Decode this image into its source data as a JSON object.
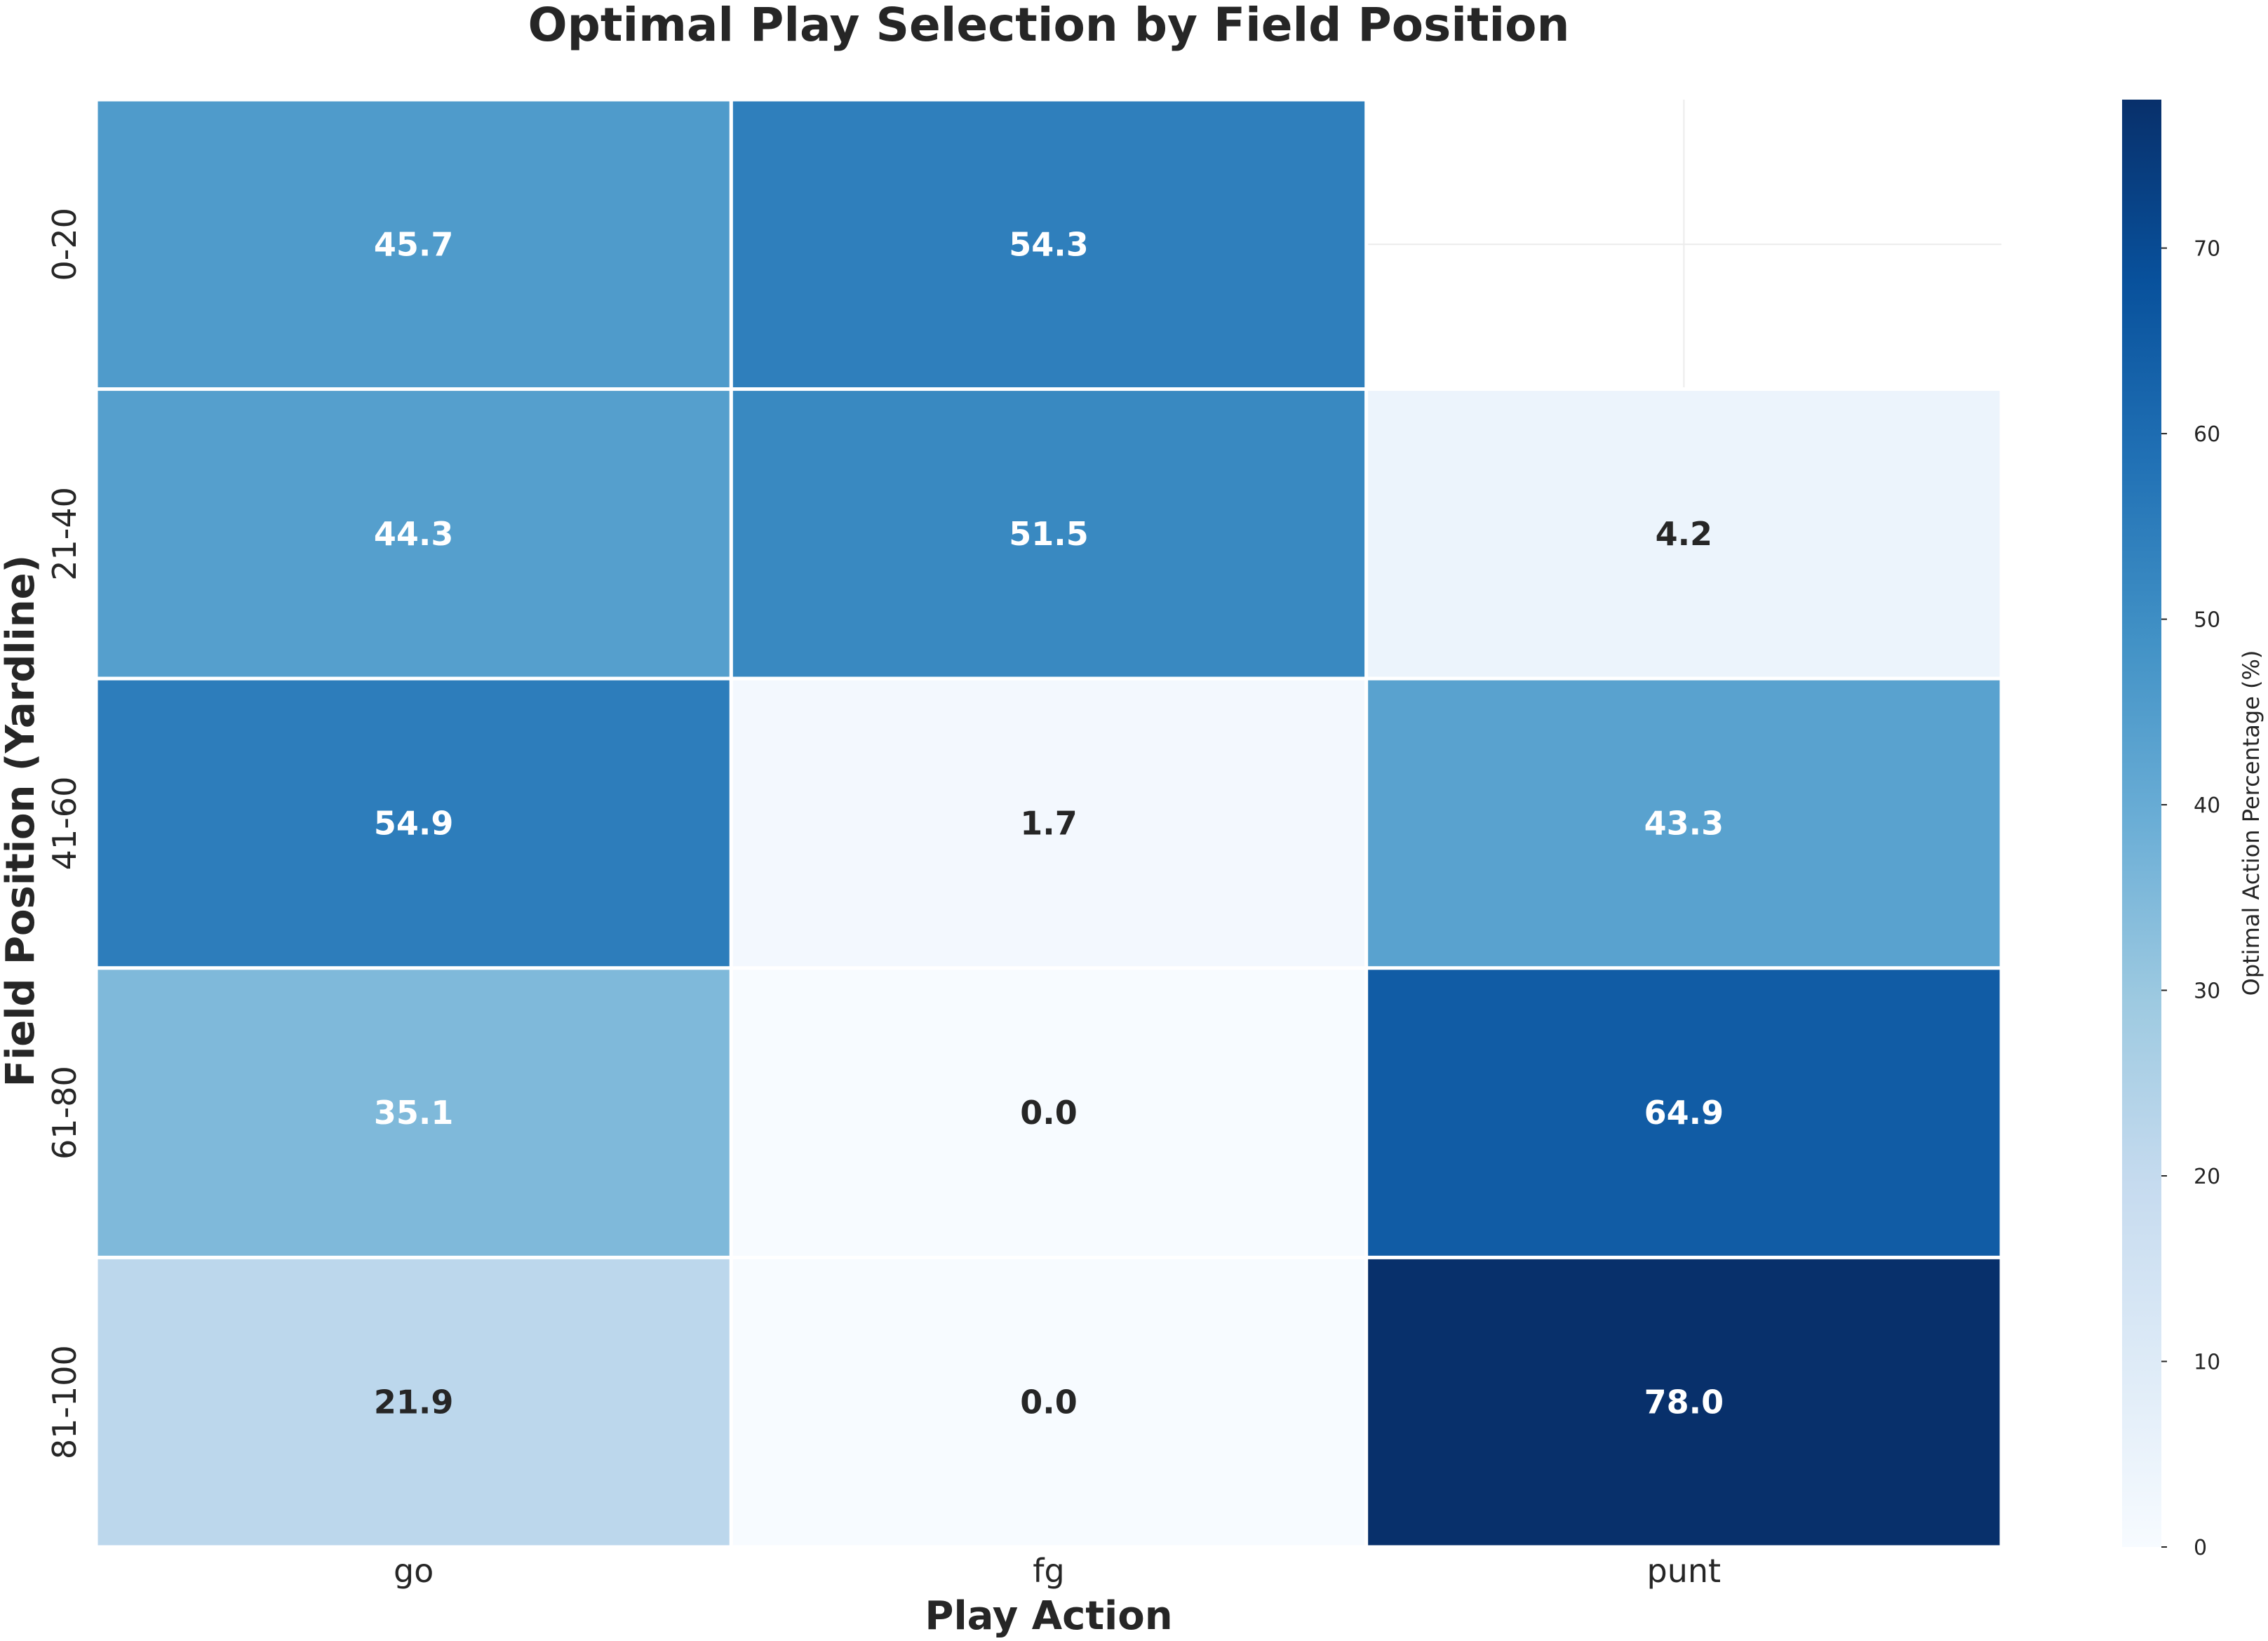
{
  "chart_data": {
    "type": "heatmap",
    "title": "Optimal Play Selection by Field Position",
    "xlabel": "Play Action",
    "ylabel": "Field Position (Yardline)",
    "x_categories": [
      "go",
      "fg",
      "punt"
    ],
    "y_categories": [
      "0-20",
      "21-40",
      "41-60",
      "61-80",
      "81-100"
    ],
    "values": [
      [
        45.7,
        54.3,
        null
      ],
      [
        44.3,
        51.5,
        4.2
      ],
      [
        54.9,
        1.7,
        43.3
      ],
      [
        35.1,
        0.0,
        64.9
      ],
      [
        21.9,
        0.0,
        78.0
      ]
    ],
    "value_format": "0.0",
    "colormap": "Blues",
    "colorbar": {
      "label": "Optimal Action Percentage (%)",
      "min": 0,
      "max": 78.0,
      "ticks": [
        0,
        10,
        20,
        30,
        40,
        50,
        60,
        70
      ]
    },
    "grid": true
  }
}
